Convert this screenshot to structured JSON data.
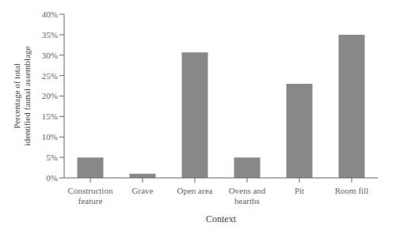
{
  "chart_data": {
    "type": "bar",
    "categories": [
      "Construction feature",
      "Grave",
      "Open area",
      "Ovens and hearths",
      "Pit",
      "Room fill"
    ],
    "values": [
      5,
      1,
      30.7,
      5,
      23,
      35
    ],
    "color": "#888888",
    "xlabel": "Context",
    "ylabel": "Percentage of total identified faunal assemblage",
    "ylim": [
      0,
      40
    ],
    "yticks": [
      {
        "value": 0,
        "label": "0%"
      },
      {
        "value": 5,
        "label": "5%"
      },
      {
        "value": 10,
        "label": "10%"
      },
      {
        "value": 15,
        "label": "15%"
      },
      {
        "value": 20,
        "label": "20%"
      },
      {
        "value": 25,
        "label": "25%"
      },
      {
        "value": 30,
        "label": "30%"
      },
      {
        "value": 35,
        "label": "35%"
      },
      {
        "value": 40,
        "label": "40%"
      }
    ]
  }
}
